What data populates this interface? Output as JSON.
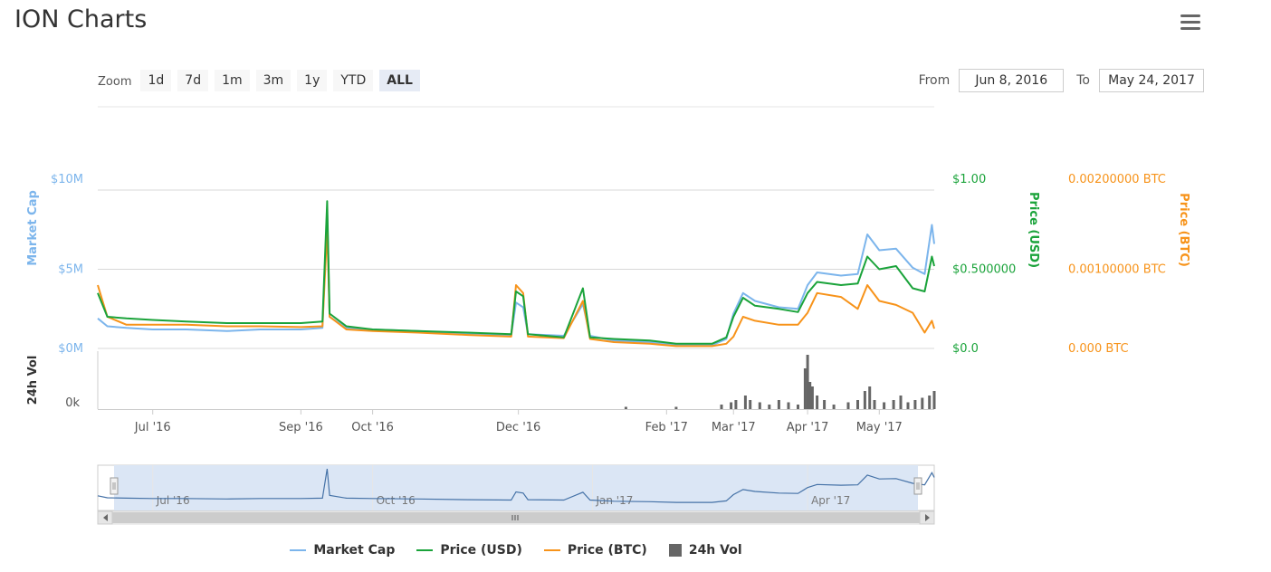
{
  "title": "ION Charts",
  "toolbar": {
    "zoom_label": "Zoom",
    "buttons": [
      "1d",
      "7d",
      "1m",
      "3m",
      "1y",
      "YTD",
      "ALL"
    ],
    "active": "ALL",
    "from_label": "From",
    "from_value": "Jun 8, 2016",
    "to_label": "To",
    "to_value": "May 24, 2017"
  },
  "colors": {
    "market_cap": "#7cb5ec",
    "price_usd": "#1aa33a",
    "price_btc": "#f7931a",
    "volume": "#666666",
    "navigator_fill": "#dbe6f5",
    "grid": "#d8d8d8"
  },
  "legend": [
    "Market Cap",
    "Price (USD)",
    "Price (BTC)",
    "24h Vol"
  ],
  "chart_data": {
    "type": "line",
    "x_range": [
      "2016-06-08",
      "2017-05-24"
    ],
    "x_ticks": [
      "Jul '16",
      "Sep '16",
      "Oct '16",
      "Dec '16",
      "Feb '17",
      "Mar '17",
      "Apr '17",
      "May '17"
    ],
    "axes": {
      "market_cap": {
        "label": "Market Cap",
        "ticks": [
          "$0M",
          "$5M",
          "$10M"
        ],
        "range": [
          0,
          10
        ]
      },
      "price_usd": {
        "label": "Price (USD)",
        "ticks": [
          "$0.0",
          "$0.500000",
          "$1.00"
        ],
        "range": [
          0,
          1
        ]
      },
      "price_btc": {
        "label": "Price (BTC)",
        "ticks": [
          "0.000 BTC",
          "0.00100000 BTC",
          "0.00200000 BTC"
        ],
        "range": [
          0,
          0.002
        ]
      },
      "volume": {
        "label": "24h Vol",
        "ticks": [
          "0k"
        ]
      }
    },
    "navigator_ticks": [
      "Jul '16",
      "Oct '16",
      "Jan '17",
      "Apr '17"
    ],
    "series": [
      {
        "name": "Market Cap",
        "unit": "$M",
        "points": [
          [
            "2016-06-08",
            1.9
          ],
          [
            "2016-06-12",
            1.4
          ],
          [
            "2016-06-20",
            1.3
          ],
          [
            "2016-07-01",
            1.2
          ],
          [
            "2016-07-15",
            1.2
          ],
          [
            "2016-08-01",
            1.1
          ],
          [
            "2016-08-15",
            1.2
          ],
          [
            "2016-09-01",
            1.2
          ],
          [
            "2016-09-10",
            1.3
          ],
          [
            "2016-09-12",
            8.8
          ],
          [
            "2016-09-13",
            2.0
          ],
          [
            "2016-09-20",
            1.3
          ],
          [
            "2016-10-01",
            1.2
          ],
          [
            "2016-10-20",
            1.1
          ],
          [
            "2016-11-10",
            0.9
          ],
          [
            "2016-11-28",
            0.8
          ],
          [
            "2016-11-30",
            2.9
          ],
          [
            "2016-12-03",
            2.6
          ],
          [
            "2016-12-05",
            0.9
          ],
          [
            "2016-12-20",
            0.8
          ],
          [
            "2016-12-28",
            2.8
          ],
          [
            "2016-12-31",
            0.8
          ],
          [
            "2017-01-10",
            0.5
          ],
          [
            "2017-01-25",
            0.4
          ],
          [
            "2017-02-05",
            0.2
          ],
          [
            "2017-02-20",
            0.2
          ],
          [
            "2017-02-26",
            0.6
          ],
          [
            "2017-03-01",
            2.2
          ],
          [
            "2017-03-05",
            3.5
          ],
          [
            "2017-03-10",
            3.0
          ],
          [
            "2017-03-20",
            2.6
          ],
          [
            "2017-03-28",
            2.5
          ],
          [
            "2017-04-01",
            4.0
          ],
          [
            "2017-04-05",
            4.8
          ],
          [
            "2017-04-15",
            4.6
          ],
          [
            "2017-04-22",
            4.7
          ],
          [
            "2017-04-26",
            7.2
          ],
          [
            "2017-05-01",
            6.2
          ],
          [
            "2017-05-08",
            6.3
          ],
          [
            "2017-05-15",
            5.1
          ],
          [
            "2017-05-20",
            4.7
          ],
          [
            "2017-05-23",
            7.8
          ],
          [
            "2017-05-24",
            6.6
          ]
        ]
      },
      {
        "name": "Price (USD)",
        "unit": "USD",
        "points": [
          [
            "2016-06-08",
            0.35
          ],
          [
            "2016-06-12",
            0.2
          ],
          [
            "2016-06-20",
            0.19
          ],
          [
            "2016-07-01",
            0.18
          ],
          [
            "2016-07-15",
            0.17
          ],
          [
            "2016-08-01",
            0.16
          ],
          [
            "2016-08-15",
            0.16
          ],
          [
            "2016-09-01",
            0.16
          ],
          [
            "2016-09-10",
            0.17
          ],
          [
            "2016-09-12",
            0.93
          ],
          [
            "2016-09-13",
            0.22
          ],
          [
            "2016-09-20",
            0.14
          ],
          [
            "2016-10-01",
            0.12
          ],
          [
            "2016-10-20",
            0.11
          ],
          [
            "2016-11-10",
            0.1
          ],
          [
            "2016-11-28",
            0.09
          ],
          [
            "2016-11-30",
            0.36
          ],
          [
            "2016-12-03",
            0.33
          ],
          [
            "2016-12-05",
            0.09
          ],
          [
            "2016-12-20",
            0.07
          ],
          [
            "2016-12-28",
            0.38
          ],
          [
            "2016-12-31",
            0.07
          ],
          [
            "2017-01-10",
            0.06
          ],
          [
            "2017-01-25",
            0.05
          ],
          [
            "2017-02-05",
            0.03
          ],
          [
            "2017-02-20",
            0.03
          ],
          [
            "2017-02-26",
            0.07
          ],
          [
            "2017-03-01",
            0.2
          ],
          [
            "2017-03-05",
            0.32
          ],
          [
            "2017-03-10",
            0.27
          ],
          [
            "2017-03-20",
            0.25
          ],
          [
            "2017-03-28",
            0.23
          ],
          [
            "2017-04-01",
            0.35
          ],
          [
            "2017-04-05",
            0.42
          ],
          [
            "2017-04-15",
            0.4
          ],
          [
            "2017-04-22",
            0.41
          ],
          [
            "2017-04-26",
            0.58
          ],
          [
            "2017-05-01",
            0.5
          ],
          [
            "2017-05-08",
            0.52
          ],
          [
            "2017-05-15",
            0.38
          ],
          [
            "2017-05-20",
            0.36
          ],
          [
            "2017-05-23",
            0.58
          ],
          [
            "2017-05-24",
            0.52
          ]
        ]
      },
      {
        "name": "Price (BTC)",
        "unit": "BTC",
        "points": [
          [
            "2016-06-08",
            0.0008
          ],
          [
            "2016-06-12",
            0.0004
          ],
          [
            "2016-06-20",
            0.0003
          ],
          [
            "2016-07-01",
            0.0003
          ],
          [
            "2016-07-15",
            0.0003
          ],
          [
            "2016-08-01",
            0.00028
          ],
          [
            "2016-08-15",
            0.00028
          ],
          [
            "2016-09-01",
            0.00027
          ],
          [
            "2016-09-10",
            0.00028
          ],
          [
            "2016-09-12",
            0.0015
          ],
          [
            "2016-09-13",
            0.0004
          ],
          [
            "2016-09-20",
            0.00024
          ],
          [
            "2016-10-01",
            0.00022
          ],
          [
            "2016-10-20",
            0.0002
          ],
          [
            "2016-11-10",
            0.00017
          ],
          [
            "2016-11-28",
            0.00015
          ],
          [
            "2016-11-30",
            0.0008
          ],
          [
            "2016-12-03",
            0.0007
          ],
          [
            "2016-12-05",
            0.00015
          ],
          [
            "2016-12-20",
            0.00013
          ],
          [
            "2016-12-28",
            0.0006
          ],
          [
            "2016-12-31",
            0.00012
          ],
          [
            "2017-01-10",
            8e-05
          ],
          [
            "2017-01-25",
            6e-05
          ],
          [
            "2017-02-05",
            3e-05
          ],
          [
            "2017-02-20",
            3e-05
          ],
          [
            "2017-02-26",
            6e-05
          ],
          [
            "2017-03-01",
            0.00015
          ],
          [
            "2017-03-05",
            0.0004
          ],
          [
            "2017-03-10",
            0.00035
          ],
          [
            "2017-03-20",
            0.0003
          ],
          [
            "2017-03-28",
            0.0003
          ],
          [
            "2017-04-01",
            0.00045
          ],
          [
            "2017-04-05",
            0.0007
          ],
          [
            "2017-04-15",
            0.00065
          ],
          [
            "2017-04-22",
            0.0005
          ],
          [
            "2017-04-26",
            0.0008
          ],
          [
            "2017-05-01",
            0.0006
          ],
          [
            "2017-05-08",
            0.00055
          ],
          [
            "2017-05-15",
            0.00045
          ],
          [
            "2017-05-20",
            0.0002
          ],
          [
            "2017-05-23",
            0.00035
          ],
          [
            "2017-05-24",
            0.00025
          ]
        ]
      },
      {
        "name": "24h Vol",
        "type": "bar",
        "points": [
          [
            "2017-01-15",
            0.5
          ],
          [
            "2017-02-05",
            0.5
          ],
          [
            "2017-02-24",
            1
          ],
          [
            "2017-02-28",
            1.5
          ],
          [
            "2017-03-02",
            2
          ],
          [
            "2017-03-06",
            3
          ],
          [
            "2017-03-08",
            2
          ],
          [
            "2017-03-12",
            1.5
          ],
          [
            "2017-03-16",
            1
          ],
          [
            "2017-03-20",
            2
          ],
          [
            "2017-03-24",
            1.5
          ],
          [
            "2017-03-28",
            1
          ],
          [
            "2017-03-31",
            9
          ],
          [
            "2017-04-01",
            12
          ],
          [
            "2017-04-02",
            6
          ],
          [
            "2017-04-03",
            5
          ],
          [
            "2017-04-05",
            3
          ],
          [
            "2017-04-08",
            2
          ],
          [
            "2017-04-12",
            1
          ],
          [
            "2017-04-18",
            1.5
          ],
          [
            "2017-04-22",
            2
          ],
          [
            "2017-04-25",
            4
          ],
          [
            "2017-04-27",
            5
          ],
          [
            "2017-04-29",
            2
          ],
          [
            "2017-05-03",
            1.5
          ],
          [
            "2017-05-07",
            2
          ],
          [
            "2017-05-10",
            3
          ],
          [
            "2017-05-13",
            1.5
          ],
          [
            "2017-05-16",
            2
          ],
          [
            "2017-05-19",
            2.5
          ],
          [
            "2017-05-22",
            3
          ],
          [
            "2017-05-24",
            4
          ]
        ]
      }
    ]
  }
}
